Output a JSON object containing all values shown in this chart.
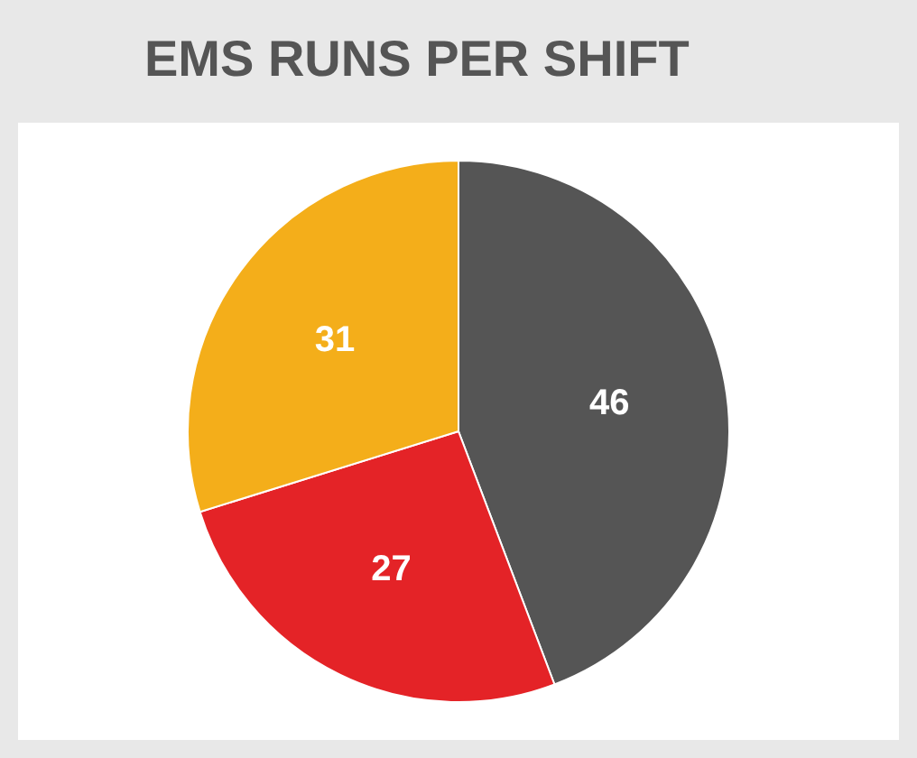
{
  "chart_data": {
    "type": "pie",
    "title": "EMS RUNS PER SHIFT",
    "categories": [
      null,
      null,
      null
    ],
    "values": [
      46,
      27,
      31
    ],
    "colors": [
      "#555555",
      "#e42327",
      "#f4ae1a"
    ],
    "data_labels": true,
    "legend": false
  }
}
